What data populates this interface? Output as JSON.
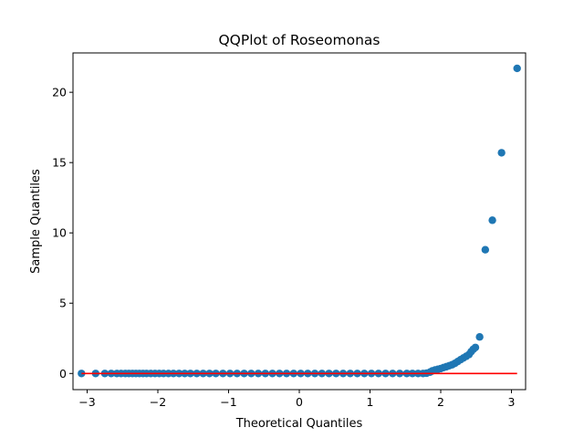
{
  "chart_data": {
    "type": "scatter",
    "title": "QQPlot of Roseomonas",
    "xlabel": "Theoretical Quantiles",
    "ylabel": "Sample Quantiles",
    "xlim": [
      -3.2,
      3.2
    ],
    "ylim": [
      -1.15,
      22.8
    ],
    "xticks": [
      -3,
      -2,
      -1,
      0,
      1,
      2,
      3
    ],
    "yticks": [
      0,
      5,
      10,
      15,
      20
    ],
    "grid": false,
    "colors": {
      "points": "#1f77b4",
      "reference_line": "#ff0000"
    },
    "reference_line": {
      "x": [
        -3.08,
        3.08
      ],
      "y": [
        0,
        0
      ]
    },
    "series": [
      {
        "points": [
          [
            -3.08,
            0
          ],
          [
            -2.88,
            0
          ],
          [
            -2.75,
            0
          ],
          [
            -2.66,
            0
          ],
          [
            -2.58,
            0
          ],
          [
            -2.52,
            0
          ],
          [
            -2.46,
            0
          ],
          [
            -2.41,
            0
          ],
          [
            -2.36,
            0
          ],
          [
            -2.31,
            0
          ],
          [
            -2.26,
            0
          ],
          [
            -2.21,
            0
          ],
          [
            -2.16,
            0
          ],
          [
            -2.1,
            0
          ],
          [
            -2.04,
            0
          ],
          [
            -1.98,
            0
          ],
          [
            -1.92,
            0
          ],
          [
            -1.85,
            0
          ],
          [
            -1.78,
            0
          ],
          [
            -1.7,
            0
          ],
          [
            -1.62,
            0
          ],
          [
            -1.54,
            0
          ],
          [
            -1.45,
            0
          ],
          [
            -1.36,
            0
          ],
          [
            -1.27,
            0
          ],
          [
            -1.18,
            0
          ],
          [
            -1.08,
            0
          ],
          [
            -0.98,
            0
          ],
          [
            -0.88,
            0
          ],
          [
            -0.78,
            0
          ],
          [
            -0.68,
            0
          ],
          [
            -0.58,
            0
          ],
          [
            -0.48,
            0
          ],
          [
            -0.38,
            0
          ],
          [
            -0.28,
            0
          ],
          [
            -0.18,
            0
          ],
          [
            -0.08,
            0
          ],
          [
            0.02,
            0
          ],
          [
            0.12,
            0
          ],
          [
            0.22,
            0
          ],
          [
            0.32,
            0
          ],
          [
            0.42,
            0
          ],
          [
            0.52,
            0
          ],
          [
            0.62,
            0
          ],
          [
            0.72,
            0
          ],
          [
            0.82,
            0
          ],
          [
            0.92,
            0
          ],
          [
            1.02,
            0
          ],
          [
            1.12,
            0
          ],
          [
            1.22,
            0
          ],
          [
            1.32,
            0
          ],
          [
            1.42,
            0
          ],
          [
            1.52,
            0
          ],
          [
            1.6,
            0
          ],
          [
            1.68,
            0
          ],
          [
            1.75,
            0
          ],
          [
            1.8,
            0.02
          ],
          [
            1.85,
            0.1
          ],
          [
            1.88,
            0.18
          ],
          [
            1.92,
            0.25
          ],
          [
            1.96,
            0.3
          ],
          [
            2.0,
            0.35
          ],
          [
            2.04,
            0.42
          ],
          [
            2.08,
            0.48
          ],
          [
            2.12,
            0.55
          ],
          [
            2.16,
            0.62
          ],
          [
            2.2,
            0.72
          ],
          [
            2.24,
            0.85
          ],
          [
            2.28,
            0.98
          ],
          [
            2.32,
            1.1
          ],
          [
            2.36,
            1.22
          ],
          [
            2.4,
            1.35
          ],
          [
            2.43,
            1.55
          ],
          [
            2.46,
            1.72
          ],
          [
            2.49,
            1.85
          ],
          [
            2.55,
            2.6
          ],
          [
            2.63,
            8.8
          ],
          [
            2.73,
            10.9
          ],
          [
            2.86,
            15.7
          ],
          [
            3.08,
            21.7
          ]
        ]
      }
    ]
  }
}
